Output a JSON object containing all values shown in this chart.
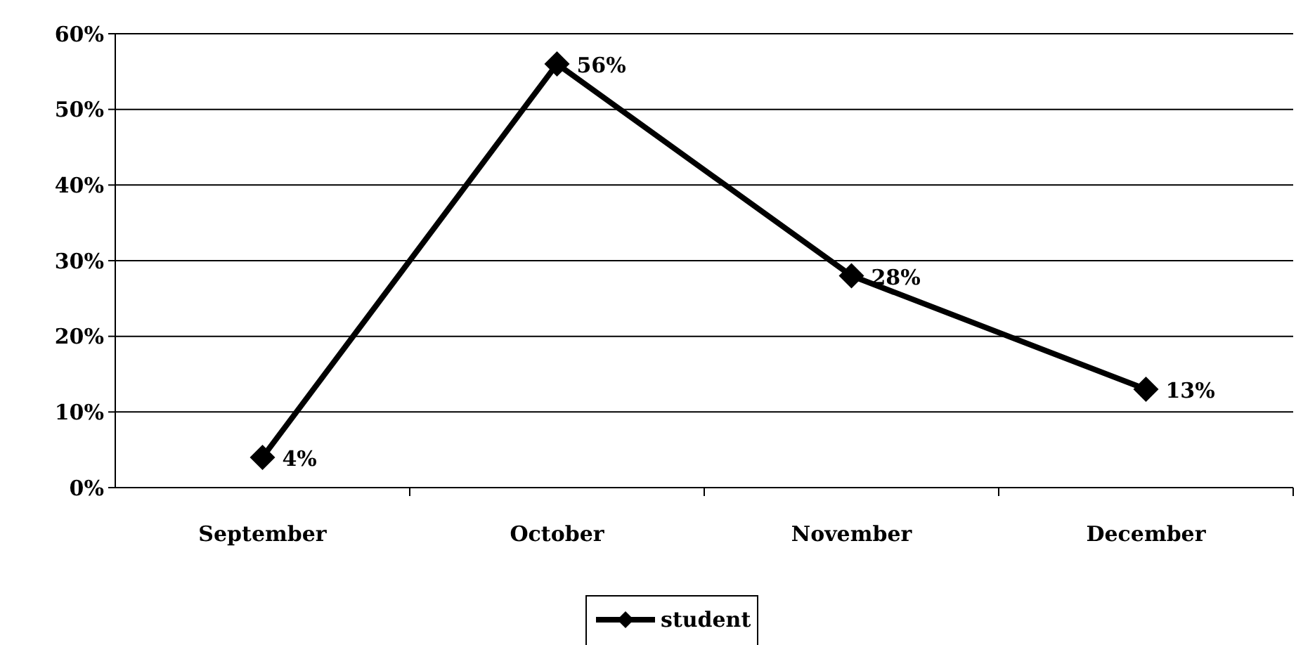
{
  "chart_data": {
    "type": "line",
    "categories": [
      "September",
      "October",
      "November",
      "December"
    ],
    "series": [
      {
        "name": "student",
        "color": "#000000",
        "values": [
          4,
          56,
          28,
          13
        ],
        "value_labels": [
          "4%",
          "56%",
          "28%",
          "13%"
        ]
      }
    ],
    "ylim": [
      0,
      60
    ],
    "yticks": [
      {
        "value": 0,
        "label": "0%"
      },
      {
        "value": 10,
        "label": "10%"
      },
      {
        "value": 20,
        "label": "20%"
      },
      {
        "value": 30,
        "label": "30%"
      },
      {
        "value": 40,
        "label": "40%"
      },
      {
        "value": 50,
        "label": "50%"
      },
      {
        "value": 60,
        "label": "60%"
      }
    ],
    "grid": "y",
    "legend": "bottom",
    "marker": "diamond",
    "line_style": "solid"
  }
}
